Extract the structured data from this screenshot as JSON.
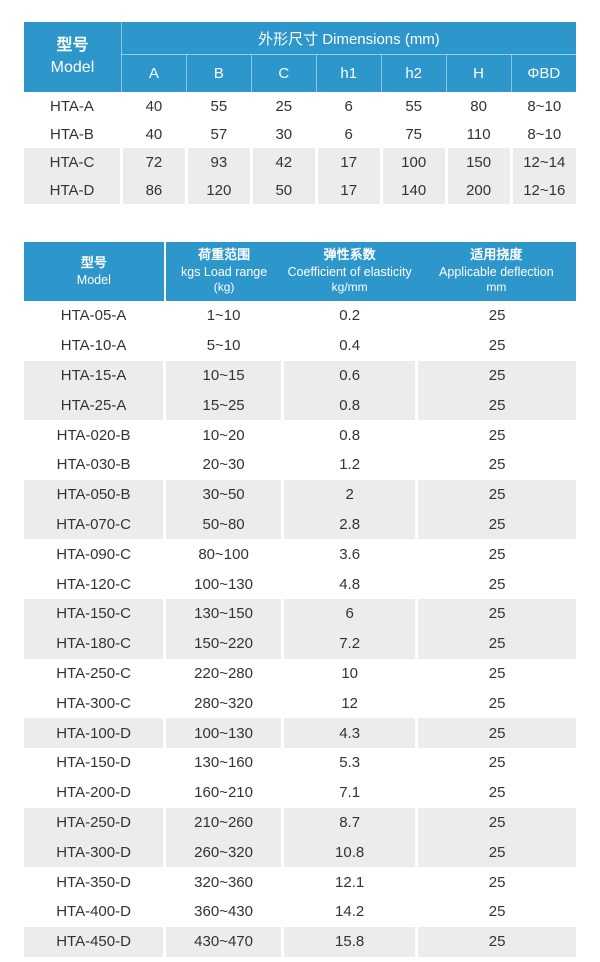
{
  "colors": {
    "header_blue": "#2D96CB",
    "stripe_gray": "#ECECEC",
    "header_text": "#FFFFFF",
    "body_text": "#333333"
  },
  "table1": {
    "header": {
      "model_label_cn": "型号",
      "model_label_en": "Model",
      "dimensions_label": "外形尺寸 Dimensions (mm)",
      "columns": [
        "A",
        "B",
        "C",
        "h1",
        "h2",
        "H",
        "ΦBD"
      ]
    },
    "rows": [
      {
        "model": "HTA-A",
        "values": [
          "40",
          "55",
          "25",
          "6",
          "55",
          "80",
          "8~10"
        ],
        "shaded": false
      },
      {
        "model": "HTA-B",
        "values": [
          "40",
          "57",
          "30",
          "6",
          "75",
          "110",
          "8~10"
        ],
        "shaded": false
      },
      {
        "model": "HTA-C",
        "values": [
          "72",
          "93",
          "42",
          "17",
          "100",
          "150",
          "12~14"
        ],
        "shaded": true
      },
      {
        "model": "HTA-D",
        "values": [
          "86",
          "120",
          "50",
          "17",
          "140",
          "200",
          "12~16"
        ],
        "shaded": true
      }
    ]
  },
  "table2": {
    "header": {
      "model_label_cn": "型号",
      "model_label_en": "Model",
      "load_range": [
        "荷重范围",
        "kgs Load range",
        "(kg)"
      ],
      "elasticity": [
        "弹性系数",
        "Coefficient of elasticity",
        "kg/mm"
      ],
      "deflection": [
        "适用挠度",
        "Applicable deflection",
        "mm"
      ]
    },
    "rows": [
      {
        "model": "HTA-05-A",
        "load_range": "1~10",
        "coefficient": "0.2",
        "deflection": "25",
        "shaded": false
      },
      {
        "model": "HTA-10-A",
        "load_range": "5~10",
        "coefficient": "0.4",
        "deflection": "25",
        "shaded": false
      },
      {
        "model": "HTA-15-A",
        "load_range": "10~15",
        "coefficient": "0.6",
        "deflection": "25",
        "shaded": true
      },
      {
        "model": "HTA-25-A",
        "load_range": "15~25",
        "coefficient": "0.8",
        "deflection": "25",
        "shaded": true
      },
      {
        "model": "HTA-020-B",
        "load_range": "10~20",
        "coefficient": "0.8",
        "deflection": "25",
        "shaded": false
      },
      {
        "model": "HTA-030-B",
        "load_range": "20~30",
        "coefficient": "1.2",
        "deflection": "25",
        "shaded": false
      },
      {
        "model": "HTA-050-B",
        "load_range": "30~50",
        "coefficient": "2",
        "deflection": "25",
        "shaded": true
      },
      {
        "model": "HTA-070-C",
        "load_range": "50~80",
        "coefficient": "2.8",
        "deflection": "25",
        "shaded": true
      },
      {
        "model": "HTA-090-C",
        "load_range": "80~100",
        "coefficient": "3.6",
        "deflection": "25",
        "shaded": false
      },
      {
        "model": "HTA-120-C",
        "load_range": "100~130",
        "coefficient": "4.8",
        "deflection": "25",
        "shaded": false
      },
      {
        "model": "HTA-150-C",
        "load_range": "130~150",
        "coefficient": "6",
        "deflection": "25",
        "shaded": true
      },
      {
        "model": "HTA-180-C",
        "load_range": "150~220",
        "coefficient": "7.2",
        "deflection": "25",
        "shaded": true
      },
      {
        "model": "HTA-250-C",
        "load_range": "220~280",
        "coefficient": "10",
        "deflection": "25",
        "shaded": false
      },
      {
        "model": "HTA-300-C",
        "load_range": "280~320",
        "coefficient": "12",
        "deflection": "25",
        "shaded": false
      },
      {
        "model": "HTA-100-D",
        "load_range": "100~130",
        "coefficient": "4.3",
        "deflection": "25",
        "shaded": true
      },
      {
        "model": "HTA-150-D",
        "load_range": "130~160",
        "coefficient": "5.3",
        "deflection": "25",
        "shaded": false
      },
      {
        "model": "HTA-200-D",
        "load_range": "160~210",
        "coefficient": "7.1",
        "deflection": "25",
        "shaded": false
      },
      {
        "model": "HTA-250-D",
        "load_range": "210~260",
        "coefficient": "8.7",
        "deflection": "25",
        "shaded": true
      },
      {
        "model": "HTA-300-D",
        "load_range": "260~320",
        "coefficient": "10.8",
        "deflection": "25",
        "shaded": true
      },
      {
        "model": "HTA-350-D",
        "load_range": "320~360",
        "coefficient": "12.1",
        "deflection": "25",
        "shaded": false
      },
      {
        "model": "HTA-400-D",
        "load_range": "360~430",
        "coefficient": "14.2",
        "deflection": "25",
        "shaded": false
      },
      {
        "model": "HTA-450-D",
        "load_range": "430~470",
        "coefficient": "15.8",
        "deflection": "25",
        "shaded": true
      }
    ]
  }
}
